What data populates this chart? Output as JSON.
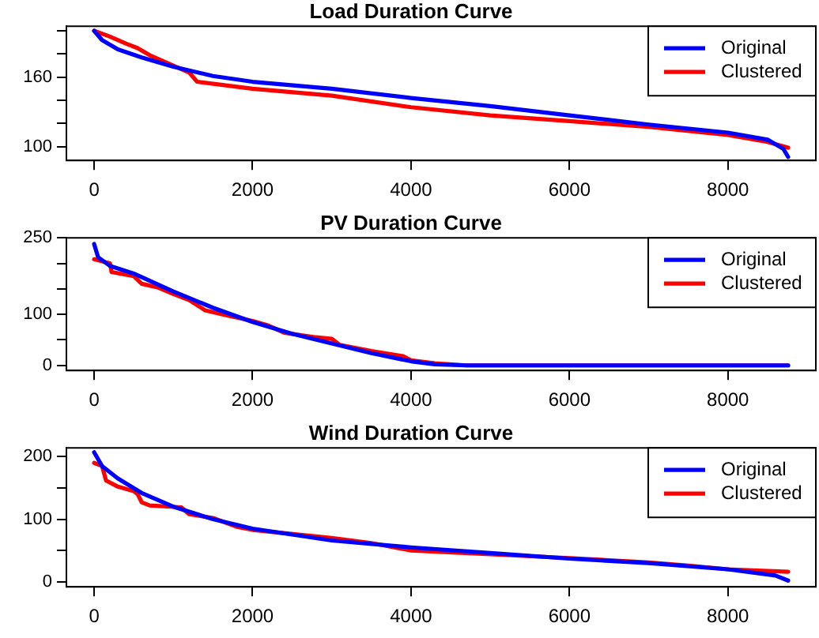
{
  "chart_data": [
    {
      "type": "line",
      "title": "Load Duration Curve",
      "xlim": [
        -350,
        9110
      ],
      "xticks": [
        0,
        2000,
        4000,
        6000,
        8000
      ],
      "ylim": [
        88,
        204
      ],
      "yticks": [
        100,
        {
          "value": 120,
          "label": null
        },
        {
          "value": 140,
          "label": null
        },
        160,
        {
          "value": 180,
          "label": null
        },
        {
          "value": 200,
          "label": null
        }
      ],
      "grid": false,
      "legend": "top right",
      "marker": "none",
      "line_style": "solid",
      "series": [
        {
          "name": "Original",
          "color": "#0000ff",
          "x": [
            0,
            100,
            300,
            600,
            1000,
            1500,
            2000,
            3000,
            4000,
            5000,
            6000,
            7000,
            8000,
            8500,
            8700,
            8760
          ],
          "values": [
            200,
            192,
            184,
            177,
            169,
            161,
            156,
            150,
            142,
            135,
            127,
            119,
            112,
            106,
            98,
            91
          ]
        },
        {
          "name": "Clustered",
          "color": "#ff0000",
          "x": [
            0,
            200,
            400,
            550,
            700,
            1000,
            1200,
            1300,
            2000,
            3000,
            4000,
            5000,
            6000,
            7000,
            8000,
            8500,
            8760
          ],
          "values": [
            200,
            195,
            189,
            185,
            179,
            170,
            164,
            156,
            150,
            144,
            134,
            127,
            122,
            117,
            110,
            104,
            99
          ]
        }
      ]
    },
    {
      "type": "line",
      "title": "PV Duration Curve",
      "xlim": [
        -350,
        9110
      ],
      "xticks": [
        0,
        2000,
        4000,
        6000,
        8000
      ],
      "ylim": [
        -10,
        250
      ],
      "yticks": [
        0,
        {
          "value": 50,
          "label": null
        },
        100,
        {
          "value": 150,
          "label": null
        },
        {
          "value": 200,
          "label": null
        },
        250
      ],
      "grid": false,
      "legend": "top right",
      "marker": "none",
      "line_style": "solid",
      "series": [
        {
          "name": "Original",
          "color": "#0000ff",
          "x": [
            0,
            50,
            200,
            500,
            1000,
            1500,
            2000,
            2500,
            3000,
            3500,
            4000,
            4300,
            4700,
            8760
          ],
          "values": [
            238,
            212,
            195,
            180,
            145,
            113,
            85,
            62,
            43,
            24,
            8,
            2,
            0,
            0
          ]
        },
        {
          "name": "Clustered",
          "color": "#ff0000",
          "x": [
            0,
            200,
            220,
            500,
            600,
            800,
            1000,
            1200,
            1400,
            1700,
            2000,
            2200,
            2400,
            2800,
            3000,
            3100,
            3500,
            3900,
            4000,
            4300,
            4700,
            8760
          ],
          "values": [
            208,
            200,
            183,
            175,
            160,
            153,
            140,
            128,
            108,
            97,
            87,
            78,
            64,
            55,
            52,
            40,
            28,
            18,
            10,
            4,
            0,
            0
          ]
        }
      ]
    },
    {
      "type": "line",
      "title": "Wind Duration Curve",
      "xlim": [
        -350,
        9110
      ],
      "xticks": [
        0,
        2000,
        4000,
        6000,
        8000
      ],
      "ylim": [
        -8,
        214
      ],
      "yticks": [
        0,
        {
          "value": 50,
          "label": null
        },
        100,
        {
          "value": 150,
          "label": null
        },
        200
      ],
      "grid": false,
      "legend": "top right",
      "marker": "none",
      "line_style": "solid",
      "series": [
        {
          "name": "Original",
          "color": "#0000ff",
          "x": [
            0,
            100,
            300,
            600,
            1000,
            1500,
            2000,
            3000,
            4000,
            5000,
            6000,
            7000,
            8000,
            8600,
            8760
          ],
          "values": [
            207,
            185,
            165,
            142,
            120,
            100,
            85,
            66,
            55,
            46,
            37,
            30,
            20,
            10,
            2
          ]
        },
        {
          "name": "Clustered",
          "color": "#ff0000",
          "x": [
            0,
            100,
            150,
            300,
            500,
            550,
            600,
            700,
            1100,
            1200,
            1500,
            1800,
            2000,
            3000,
            3500,
            4000,
            5000,
            6000,
            7000,
            7500,
            8000,
            8760
          ],
          "values": [
            190,
            185,
            162,
            152,
            145,
            140,
            127,
            122,
            119,
            108,
            102,
            88,
            83,
            70,
            62,
            50,
            44,
            38,
            31,
            26,
            20,
            16
          ]
        }
      ]
    }
  ]
}
